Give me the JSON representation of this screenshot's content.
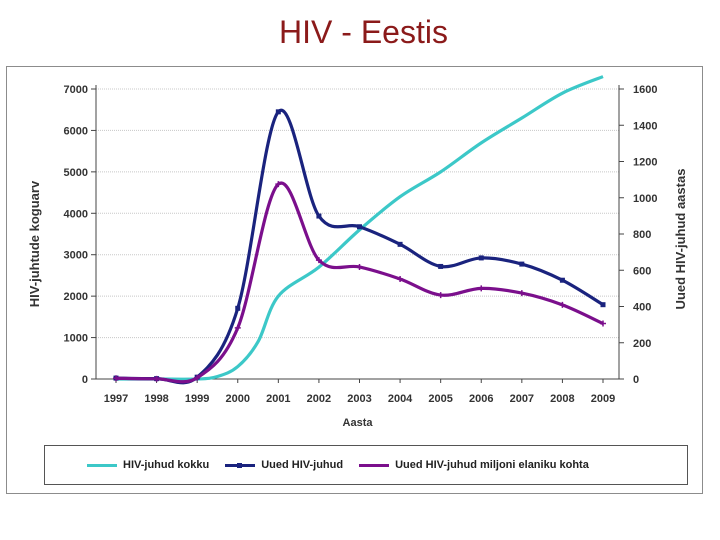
{
  "page": {
    "title": "HIV - Eestis"
  },
  "chart_data": {
    "type": "line",
    "x": [
      "1997",
      "1998",
      "1999",
      "2000",
      "2001",
      "2002",
      "2003",
      "2004",
      "2005",
      "2006",
      "2007",
      "2008",
      "2009"
    ],
    "x_numeric": [
      1997,
      1998,
      1999,
      2000,
      2001,
      2002,
      2003,
      2004,
      2005,
      2006,
      2007,
      2008,
      2009
    ],
    "xlabel": "Aasta",
    "ylabel_left": "HIV-juhtude koguarv",
    "ylabel_right": "Uued HIV-juhud aastas",
    "ylim_left": [
      0,
      7000
    ],
    "ylim_right": [
      0,
      1600
    ],
    "yticks_left": [
      "0",
      "1000",
      "2000",
      "3000",
      "4000",
      "5000",
      "6000",
      "7000"
    ],
    "yticks_right": [
      "0",
      "200",
      "400",
      "600",
      "800",
      "1000",
      "1200",
      "1400",
      "1600"
    ],
    "grid": true,
    "legend_position": "bottom",
    "series": [
      {
        "name": "HIV-juhud kokku",
        "axis": "left",
        "color": "#3cc8c8",
        "marker": "none",
        "x": [
          1997,
          1998,
          1999,
          1999.5,
          2000,
          2000.5,
          2001,
          2002,
          2003,
          2004,
          2005,
          2006,
          2007,
          2008,
          2009
        ],
        "values": [
          0,
          0,
          0,
          60,
          300,
          900,
          2000,
          2700,
          3600,
          4400,
          5000,
          5700,
          6300,
          6900,
          7300
        ]
      },
      {
        "name": "Uued HIV-juhud",
        "axis": "right",
        "color": "#1a237e",
        "marker": "square",
        "x": [
          1997,
          1998,
          1999,
          2000,
          2001,
          2002,
          2003,
          2004,
          2005,
          2006,
          2007,
          2008,
          2009
        ],
        "values": [
          5,
          2,
          10,
          390,
          1474,
          899,
          840,
          743,
          621,
          668,
          634,
          545,
          410
        ]
      },
      {
        "name": "Uued HIV-juhud miljoni elaniku kohta",
        "axis": "right",
        "color": "#7b0f8c",
        "marker": "star",
        "x": [
          1997,
          1998,
          1999,
          2000,
          2001,
          2002,
          2003,
          2004,
          2005,
          2006,
          2007,
          2008,
          2009
        ],
        "values": [
          4,
          1,
          7,
          282,
          1075,
          656,
          618,
          552,
          463,
          500,
          474,
          409,
          306
        ]
      }
    ]
  }
}
